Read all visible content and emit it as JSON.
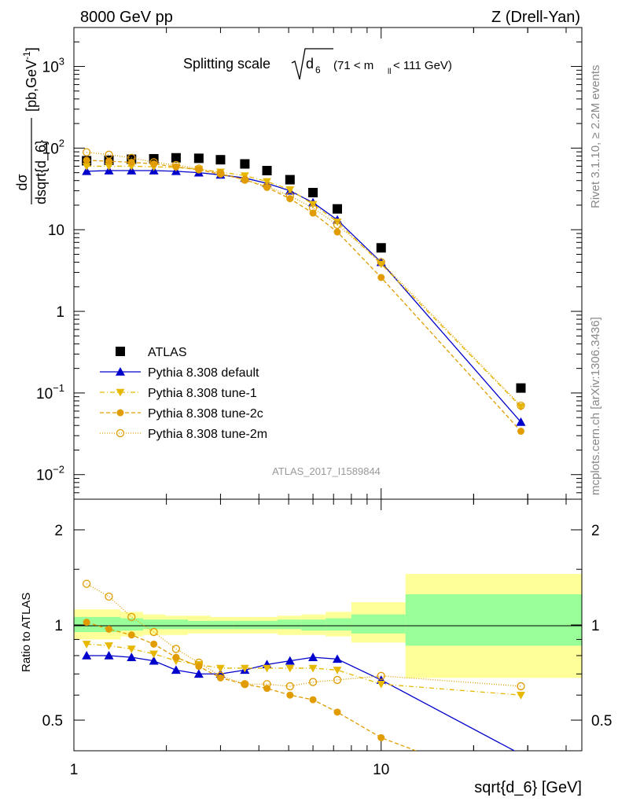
{
  "header": {
    "energy": "8000 GeV pp",
    "process": "Z (Drell-Yan)",
    "title_prefix": "Splitting scale",
    "title_var": "d",
    "title_sub": "6",
    "title_range_a": "(71 < m",
    "title_range_sub": "ll",
    "title_range_b": " < 111 GeV)"
  },
  "side": {
    "rivet": "Rivet 3.1.10, ≥ 2.2M events",
    "mcplots": "mcplots.cern.ch [arXiv:1306.3436]"
  },
  "watermark": "ATLAS_2017_I1589844",
  "axes": {
    "ylabel_top_num": "dσ",
    "ylabel_top_den": "dsqrt{d_6}",
    "ylabel_top_unit": "[pb,GeV",
    "ylabel_top_unit_sup": "-1",
    "ylabel_top_unit_end": "]",
    "ylabel_bottom": "Ratio to ATLAS",
    "xlabel": "sqrt{d_6} [GeV]",
    "x_ticks": [
      "1",
      "10"
    ],
    "y_ticks_top": [
      {
        "base": "10",
        "exp": "3",
        "value": 1000
      },
      {
        "base": "10",
        "exp": "2",
        "value": 100
      },
      {
        "base": "10",
        "exp": "",
        "value": 10
      },
      {
        "base": "1",
        "exp": "",
        "value": 1
      },
      {
        "base": "10",
        "exp": "−1",
        "value": 0.1
      },
      {
        "base": "10",
        "exp": "−2",
        "value": 0.01
      }
    ],
    "y_ticks_bottom": [
      "2",
      "1",
      "0.5"
    ]
  },
  "legend": [
    {
      "label": "ATLAS",
      "color": "#000000",
      "marker": "square",
      "dash": ""
    },
    {
      "label": "Pythia 8.308 default",
      "color": "#0000cc",
      "marker": "triangle-up",
      "dash": ""
    },
    {
      "label": "Pythia 8.308 tune-1",
      "color": "#e6b800",
      "marker": "triangle-down",
      "dash": "6,3,1,3"
    },
    {
      "label": "Pythia 8.308 tune-2c",
      "color": "#e09c00",
      "marker": "circle",
      "dash": "5,3"
    },
    {
      "label": "Pythia 8.308 tune-2m",
      "color": "#e09c00",
      "marker": "circle-open",
      "dash": "1,2"
    }
  ],
  "chart_data": {
    "type": "scatter",
    "x_scale": "log",
    "y_scale_top": "log",
    "y_scale_bottom": "log",
    "xlim": [
      1,
      45
    ],
    "ylim_top": [
      0.005,
      3000
    ],
    "ylim_bottom": [
      0.4,
      2.5
    ],
    "x": [
      1.1,
      1.3,
      1.54,
      1.82,
      2.15,
      2.55,
      3.0,
      3.6,
      4.25,
      5.05,
      6.0,
      7.2,
      10.0,
      28.5
    ],
    "series": [
      {
        "name": "ATLAS",
        "values": [
          70,
          71,
          73,
          74,
          76,
          75,
          72,
          64,
          53,
          41,
          28.5,
          18,
          6.0,
          0.115
        ]
      },
      {
        "name": "Pythia 8.308 default",
        "values": [
          52,
          53,
          53,
          53,
          52,
          50,
          47,
          43,
          37,
          30,
          21.5,
          13.2,
          4.0,
          0.044
        ]
      },
      {
        "name": "Pythia 8.308 tune-1",
        "values": [
          60,
          60,
          60,
          59,
          58,
          55,
          51,
          46,
          39,
          31,
          20.5,
          12.5,
          3.8,
          0.068
        ]
      },
      {
        "name": "Pythia 8.308 tune-2c",
        "values": [
          71,
          69,
          67,
          64,
          59,
          54,
          48,
          41,
          33,
          24,
          16,
          9.4,
          2.6,
          0.034
        ]
      },
      {
        "name": "Pythia 8.308 tune-2m",
        "values": [
          89,
          83,
          76,
          67,
          62,
          56,
          49,
          41,
          34,
          26,
          18.5,
          11.5,
          4.0,
          0.07
        ]
      }
    ],
    "ratio_x": [
      1.1,
      1.3,
      1.54,
      1.82,
      2.15,
      2.55,
      3.0,
      3.6,
      4.25,
      5.05,
      6.0,
      7.2,
      10.0,
      28.5
    ],
    "ratio_series": [
      {
        "name": "Pythia 8.308 default",
        "values": [
          0.8,
          0.8,
          0.79,
          0.77,
          0.72,
          0.7,
          0.7,
          0.72,
          0.75,
          0.77,
          0.79,
          0.78,
          0.67,
          0.39
        ]
      },
      {
        "name": "Pythia 8.308 tune-1",
        "values": [
          0.87,
          0.86,
          0.84,
          0.81,
          0.77,
          0.75,
          0.73,
          0.73,
          0.73,
          0.73,
          0.73,
          0.72,
          0.65,
          0.6
        ]
      },
      {
        "name": "Pythia 8.308 tune-2c",
        "values": [
          1.02,
          0.97,
          0.93,
          0.87,
          0.79,
          0.74,
          0.68,
          0.65,
          0.63,
          0.6,
          0.58,
          0.53,
          0.44,
          0.3
        ]
      },
      {
        "name": "Pythia 8.308 tune-2m",
        "values": [
          1.35,
          1.23,
          1.06,
          0.95,
          0.84,
          0.76,
          0.69,
          0.65,
          0.65,
          0.64,
          0.66,
          0.67,
          0.69,
          0.64
        ]
      }
    ],
    "bands": {
      "edges": [
        1,
        1.2,
        1.42,
        1.68,
        1.98,
        2.35,
        2.78,
        3.3,
        3.9,
        4.6,
        5.5,
        6.6,
        8.0,
        12.0,
        45
      ],
      "green": [
        [
          0.95,
          1.06
        ],
        [
          0.95,
          1.06
        ],
        [
          0.96,
          1.05
        ],
        [
          0.97,
          1.04
        ],
        [
          0.97,
          1.04
        ],
        [
          0.97,
          1.03
        ],
        [
          0.97,
          1.03
        ],
        [
          0.97,
          1.03
        ],
        [
          0.97,
          1.03
        ],
        [
          0.97,
          1.04
        ],
        [
          0.96,
          1.04
        ],
        [
          0.96,
          1.05
        ],
        [
          0.94,
          1.08
        ],
        [
          0.86,
          1.25
        ]
      ],
      "yellow": [
        [
          0.9,
          1.12
        ],
        [
          0.9,
          1.12
        ],
        [
          0.92,
          1.1
        ],
        [
          0.93,
          1.08
        ],
        [
          0.93,
          1.07
        ],
        [
          0.94,
          1.07
        ],
        [
          0.94,
          1.06
        ],
        [
          0.94,
          1.06
        ],
        [
          0.94,
          1.06
        ],
        [
          0.93,
          1.07
        ],
        [
          0.93,
          1.08
        ],
        [
          0.92,
          1.1
        ],
        [
          0.88,
          1.18
        ],
        [
          0.68,
          1.45
        ]
      ]
    }
  }
}
